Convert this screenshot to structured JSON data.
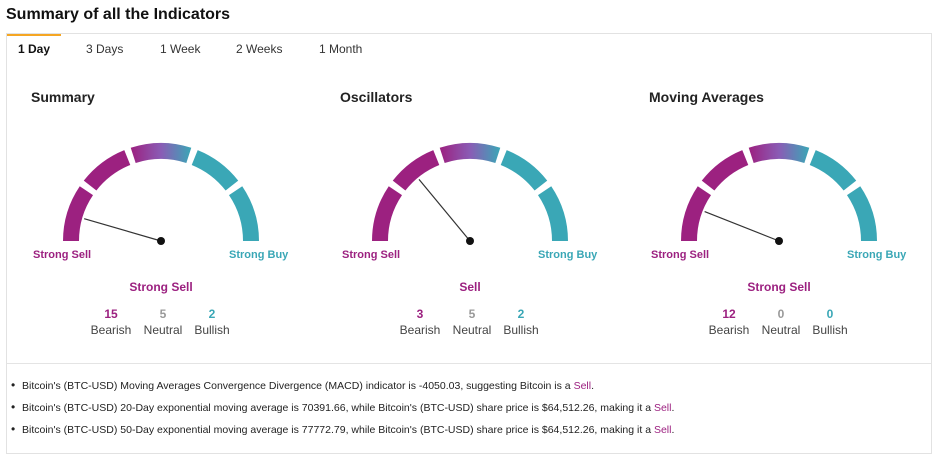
{
  "page_title": "Summary of all the Indicators",
  "tabs": [
    {
      "label": "1 Day",
      "active": true
    },
    {
      "label": "3 Days",
      "active": false
    },
    {
      "label": "1 Week",
      "active": false
    },
    {
      "label": "2 Weeks",
      "active": false
    },
    {
      "label": "1 Month",
      "active": false
    }
  ],
  "gauges": [
    {
      "title": "Summary",
      "strong_sell_label": "Strong Sell",
      "strong_buy_label": "Strong Buy",
      "verdict": "Strong Sell",
      "needle_fraction": 0.09,
      "counts": {
        "bearish": "15",
        "neutral": "5",
        "bullish": "2"
      }
    },
    {
      "title": "Oscillators",
      "strong_sell_label": "Strong Sell",
      "strong_buy_label": "Strong Buy",
      "verdict": "Sell",
      "needle_fraction": 0.28,
      "counts": {
        "bearish": "3",
        "neutral": "5",
        "bullish": "2"
      }
    },
    {
      "title": "Moving Averages",
      "strong_sell_label": "Strong Sell",
      "strong_buy_label": "Strong Buy",
      "verdict": "Strong Sell",
      "needle_fraction": 0.12,
      "counts": {
        "bearish": "12",
        "neutral": "0",
        "bullish": "0"
      }
    }
  ],
  "count_labels": {
    "bearish": "Bearish",
    "neutral": "Neutral",
    "bullish": "Bullish"
  },
  "colors": {
    "sell": "#9c2180",
    "neutral": "#8a5cb5",
    "buy": "#3aa7b6"
  },
  "bullets": [
    {
      "text": "Bitcoin's (BTC-USD) Moving Averages Convergence Divergence (MACD) indicator is -4050.03, suggesting Bitcoin is a ",
      "signal": "Sell",
      "end": "."
    },
    {
      "text": "Bitcoin's (BTC-USD) 20-Day exponential moving average is 70391.66, while Bitcoin's (BTC-USD) share price is $64,512.26, making it a ",
      "signal": "Sell",
      "end": "."
    },
    {
      "text": "Bitcoin's (BTC-USD) 50-Day exponential moving average is 77772.79, while Bitcoin's (BTC-USD) share price is $64,512.26, making it a ",
      "signal": "Sell",
      "end": "."
    }
  ]
}
